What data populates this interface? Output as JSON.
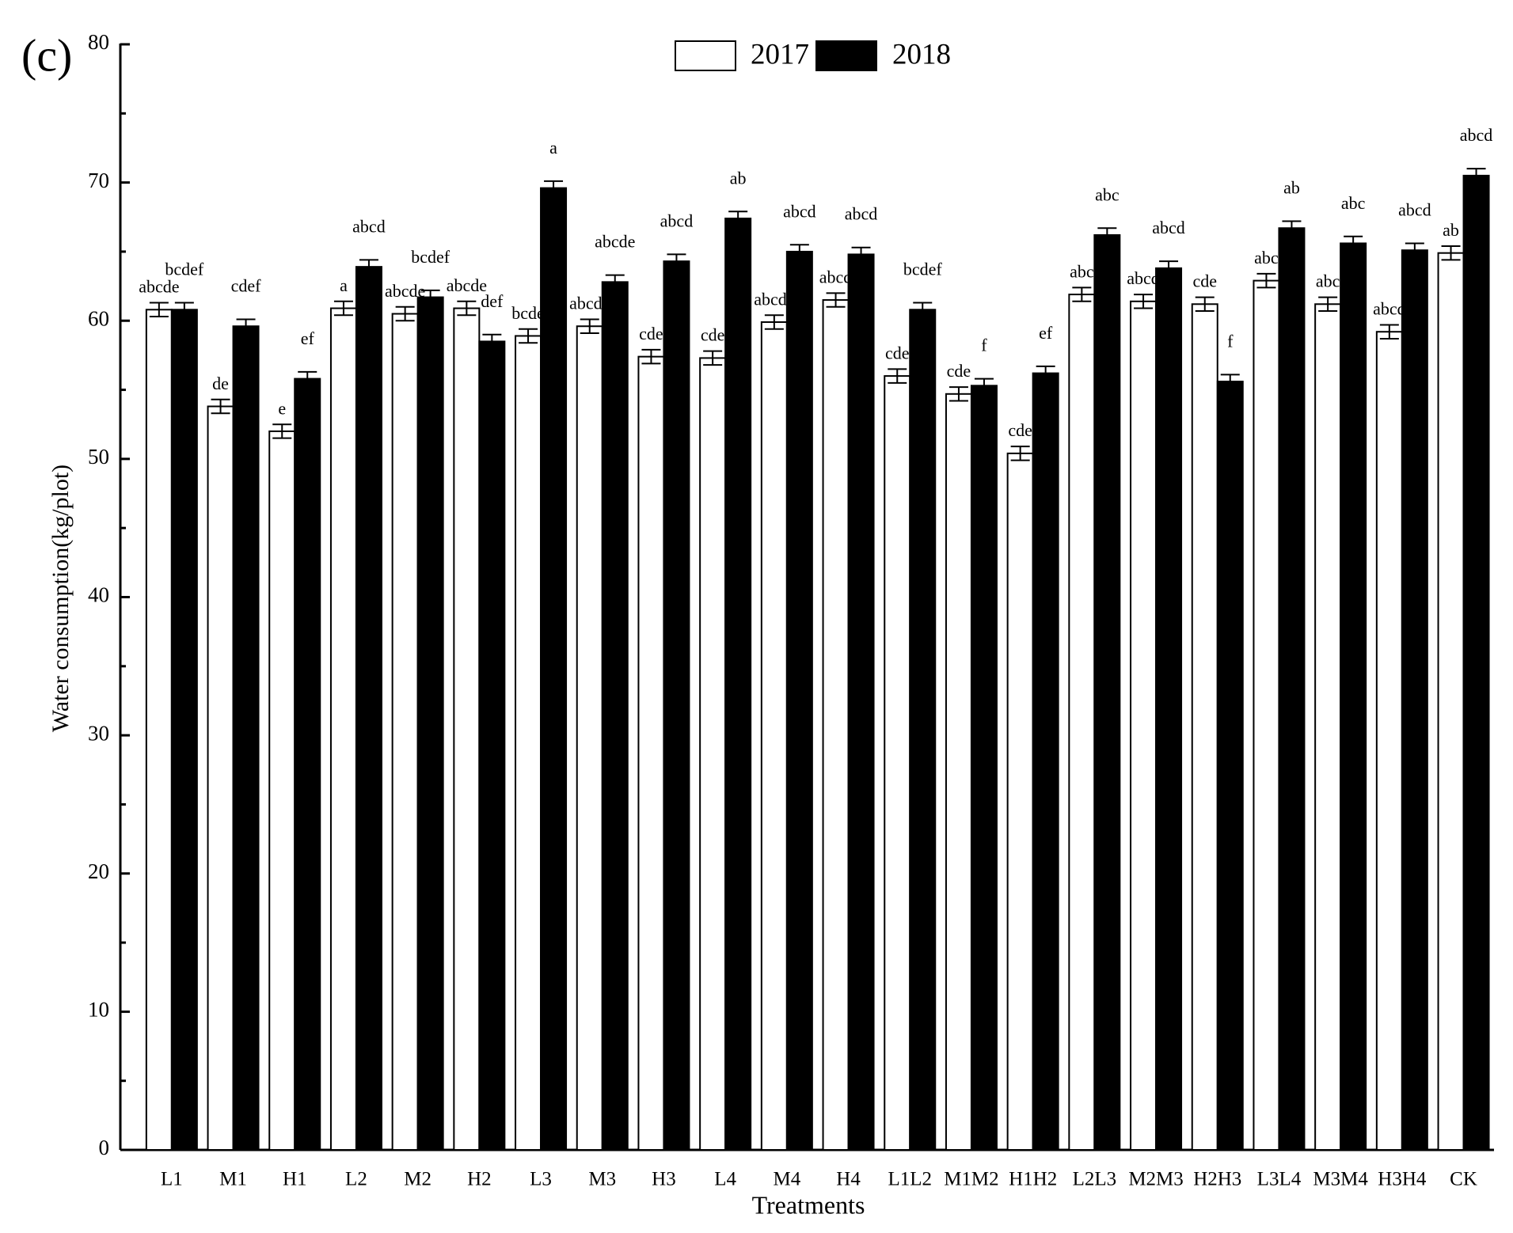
{
  "chart_data": {
    "type": "bar",
    "panel_label": "(c)",
    "x_label": "Treatments",
    "y_label": "Water consumption(kg/plot)",
    "categories": [
      "L1",
      "M1",
      "H1",
      "L2",
      "M2",
      "H2",
      "L3",
      "M3",
      "H3",
      "L4",
      "M4",
      "H4",
      "L1L2",
      "M1M2",
      "H1H2",
      "L2L3",
      "M2M3",
      "H2H3",
      "L3L4",
      "M3M4",
      "H3H4",
      "CK"
    ],
    "series": [
      {
        "name": "2017",
        "color": "#ffffff",
        "values": [
          60.8,
          53.8,
          52.0,
          60.9,
          60.5,
          60.9,
          58.9,
          59.6,
          57.4,
          57.3,
          59.9,
          61.5,
          56.0,
          54.7,
          50.4,
          61.9,
          61.4,
          61.2,
          62.9,
          61.2,
          59.2,
          64.9
        ],
        "errors": [
          0.5,
          0.5,
          0.5,
          0.5,
          0.5,
          0.5,
          0.5,
          0.5,
          0.5,
          0.5,
          0.5,
          0.5,
          0.5,
          0.5,
          0.5,
          0.5,
          0.5,
          0.5,
          0.5,
          0.5,
          0.5,
          0.5
        ],
        "significance": [
          "abcde",
          "de",
          "e",
          "a",
          "abcde",
          "abcde",
          "bcde",
          "abcde",
          "cde",
          "cde",
          "abcde",
          "abcd",
          "cde",
          "cde",
          "cde",
          "abc",
          "abcd",
          "cde",
          "abc",
          "abc",
          "abcd",
          "ab"
        ]
      },
      {
        "name": "2018",
        "color": "#000000",
        "values": [
          60.8,
          59.6,
          55.8,
          63.9,
          61.7,
          58.5,
          69.6,
          62.8,
          64.3,
          67.4,
          65.0,
          64.8,
          60.8,
          55.3,
          56.2,
          66.2,
          63.8,
          55.6,
          66.7,
          65.6,
          65.1,
          70.5
        ],
        "errors": [
          0.5,
          0.5,
          0.5,
          0.5,
          0.5,
          0.5,
          0.5,
          0.5,
          0.5,
          0.5,
          0.5,
          0.5,
          0.5,
          0.5,
          0.5,
          0.5,
          0.5,
          0.5,
          0.5,
          0.5,
          0.5,
          0.5
        ],
        "significance": [
          "bcdef",
          "cdef",
          "ef",
          "abcd",
          "bcdef",
          "def",
          "a",
          "abcde",
          "abcd",
          "ab",
          "abcd",
          "abcd",
          "bcdef",
          "f",
          "ef",
          "abc",
          "abcd",
          "f",
          "ab",
          "abc",
          "abcd",
          "abcd"
        ]
      }
    ],
    "ylim": [
      0,
      80
    ],
    "yticks": [
      0,
      10,
      20,
      30,
      40,
      50,
      60,
      70,
      80
    ],
    "minor_yticks": [
      5,
      15,
      25,
      35,
      45,
      55,
      65,
      75
    ]
  }
}
